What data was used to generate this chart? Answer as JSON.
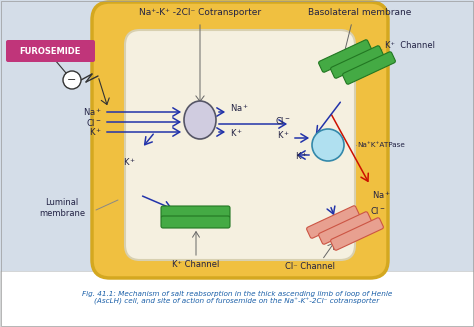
{
  "bg_color": "#d4dde8",
  "outer_cell_color": "#f0c040",
  "outer_cell_edge": "#d4a820",
  "inner_cell_color": "#f5f0e0",
  "inner_cell_edge": "#d8d0b0",
  "furosemide_box_color": "#c0357a",
  "furosemide_text": "FUROSEMIDE",
  "top_label": "Na⁺-K⁺ -2Cl⁻ Cotransporter",
  "top_right_label": "Basolateral membrane",
  "k_channel_top_right": "K⁺  Channel",
  "k_channel_bottom": "K⁺ Channel",
  "cl_channel_bottom": "Cl⁻ Channel",
  "luminal_label": "Luminal\nmembrane",
  "na_k_atpase_label": "Na⁺K⁺ATPase",
  "caption": "Fig. 41.1: Mechanism of salt reabsorption in the thick ascending limb of loop of Henle\n(AscLH) cell, and site of action of furosemide on the Na⁺-K⁺-2Cl⁻ cotransporter",
  "caption_color": "#1a5fa8",
  "blue": "#2233aa",
  "red": "#cc1100",
  "dark": "#222244",
  "gray_line": "#888888"
}
